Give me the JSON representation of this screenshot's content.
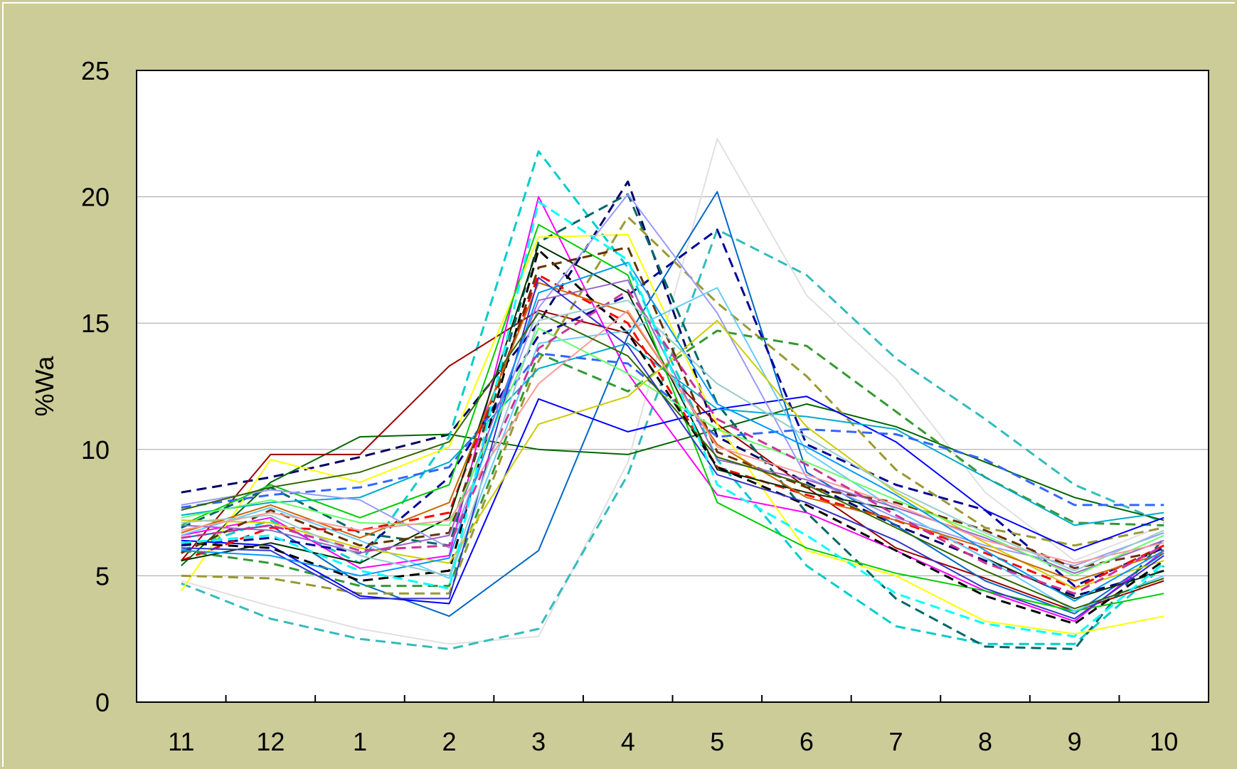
{
  "chart_data": {
    "type": "line",
    "title": "",
    "xlabel": "",
    "ylabel": "%Wa",
    "categories": [
      "11",
      "12",
      "1",
      "2",
      "3",
      "4",
      "5",
      "6",
      "7",
      "8",
      "9",
      "10"
    ],
    "ylim": [
      0,
      25
    ],
    "yticks": [
      0,
      5,
      10,
      15,
      20,
      25
    ],
    "grid": "horizontal",
    "legend": "none",
    "plot_background": "#ffffff",
    "page_background": "#cccc99",
    "series": [
      {
        "color": "#e0e0e0",
        "dash": false,
        "values": [
          4.8,
          3.8,
          2.9,
          2.3,
          2.6,
          9.5,
          22.3,
          16.1,
          12.8,
          8.3,
          5.6,
          7.0
        ]
      },
      {
        "color": "#33bbbb",
        "dash": true,
        "values": [
          4.7,
          3.3,
          2.5,
          2.1,
          2.9,
          9.0,
          18.7,
          16.9,
          13.6,
          11.2,
          8.6,
          7.1
        ]
      },
      {
        "color": "#000066",
        "dash": true,
        "values": [
          8.3,
          8.9,
          9.7,
          10.6,
          15.0,
          20.6,
          10.5,
          8.7,
          7.0,
          5.6,
          4.2,
          5.2
        ]
      },
      {
        "color": "#006600",
        "dash": false,
        "values": [
          5.4,
          8.7,
          10.5,
          10.6,
          10.0,
          9.8,
          10.8,
          11.8,
          10.9,
          9.5,
          8.1,
          7.2
        ]
      },
      {
        "color": "#00cccc",
        "dash": true,
        "values": [
          6.0,
          7.2,
          5.5,
          10.5,
          21.8,
          17.2,
          9.6,
          5.4,
          3.0,
          2.3,
          2.3,
          5.4
        ]
      },
      {
        "color": "#990000",
        "dash": false,
        "values": [
          5.6,
          9.8,
          9.8,
          13.3,
          15.5,
          14.6,
          11.0,
          8.5,
          6.1,
          4.9,
          3.6,
          4.8
        ]
      },
      {
        "color": "#ff00ff",
        "dash": false,
        "values": [
          6.6,
          7.3,
          5.3,
          5.8,
          20.0,
          13.0,
          8.2,
          7.5,
          6.0,
          4.4,
          3.2,
          6.0
        ]
      },
      {
        "color": "#0066cc",
        "dash": false,
        "values": [
          6.5,
          7.0,
          4.7,
          3.4,
          6.0,
          14.5,
          20.2,
          9.1,
          7.0,
          4.8,
          3.5,
          5.9
        ]
      },
      {
        "color": "#000099",
        "dash": true,
        "values": [
          6.2,
          6.5,
          5.9,
          8.9,
          14.5,
          16.1,
          18.7,
          10.2,
          8.6,
          7.6,
          4.6,
          6.1
        ]
      },
      {
        "color": "#006666",
        "dash": true,
        "values": [
          6.9,
          8.5,
          6.7,
          6.2,
          18.2,
          20.1,
          11.8,
          7.5,
          4.1,
          2.2,
          2.1,
          6.5
        ]
      },
      {
        "color": "#ffff00",
        "dash": false,
        "values": [
          4.4,
          9.6,
          8.7,
          10.1,
          18.4,
          18.5,
          11.0,
          6.0,
          5.0,
          3.2,
          2.7,
          3.4
        ]
      },
      {
        "color": "#999933",
        "dash": true,
        "values": [
          5.0,
          4.9,
          4.3,
          4.3,
          13.5,
          19.2,
          15.8,
          12.9,
          9.2,
          6.9,
          6.2,
          6.9
        ]
      },
      {
        "color": "#339933",
        "dash": true,
        "values": [
          6.0,
          5.5,
          4.6,
          4.6,
          13.8,
          12.3,
          14.7,
          14.1,
          11.5,
          8.9,
          7.1,
          7.0
        ]
      },
      {
        "color": "#0000ff",
        "dash": false,
        "values": [
          6.4,
          6.2,
          4.2,
          3.9,
          12.0,
          10.7,
          11.6,
          12.1,
          10.3,
          7.6,
          6.0,
          7.3
        ]
      },
      {
        "color": "#00aacc",
        "dash": false,
        "values": [
          7.4,
          7.9,
          8.1,
          9.5,
          13.2,
          14.2,
          11.6,
          11.3,
          10.8,
          8.9,
          7.0,
          7.5
        ]
      },
      {
        "color": "#3366ff",
        "dash": true,
        "values": [
          7.7,
          8.2,
          8.5,
          9.3,
          13.8,
          13.4,
          10.5,
          10.8,
          10.6,
          9.6,
          7.8,
          7.8
        ]
      },
      {
        "color": "#ff0000",
        "dash": true,
        "values": [
          5.6,
          6.9,
          6.8,
          7.5,
          16.9,
          15.0,
          9.3,
          8.2,
          7.2,
          5.9,
          4.5,
          6.2
        ]
      },
      {
        "color": "#003300",
        "dash": false,
        "values": [
          5.6,
          6.3,
          5.5,
          7.3,
          18.1,
          16.2,
          9.2,
          8.3,
          7.6,
          5.7,
          4.1,
          5.2
        ]
      },
      {
        "color": "#00cc00",
        "dash": false,
        "values": [
          7.0,
          8.6,
          7.3,
          8.6,
          18.9,
          16.9,
          7.9,
          6.1,
          5.1,
          4.4,
          3.6,
          4.3
        ]
      },
      {
        "color": "#000000",
        "dash": true,
        "values": [
          6.3,
          6.1,
          4.8,
          5.2,
          17.9,
          14.6,
          9.3,
          7.8,
          6.0,
          4.2,
          3.1,
          5.6
        ]
      },
      {
        "color": "#9999ff",
        "dash": false,
        "values": [
          7.8,
          8.4,
          8.0,
          6.1,
          15.6,
          20.1,
          15.4,
          8.9,
          7.3,
          6.2,
          5.4,
          6.7
        ]
      },
      {
        "color": "#66ccff",
        "dash": false,
        "values": [
          6.6,
          7.7,
          6.4,
          4.9,
          14.2,
          14.7,
          16.4,
          9.9,
          7.6,
          5.7,
          3.6,
          5.0
        ]
      },
      {
        "color": "#cccc00",
        "dash": false,
        "values": [
          7.2,
          7.1,
          6.1,
          5.5,
          11.0,
          12.1,
          15.1,
          10.9,
          8.3,
          6.3,
          4.5,
          5.6
        ]
      },
      {
        "color": "#663300",
        "dash": true,
        "values": [
          5.9,
          7.6,
          6.2,
          6.7,
          17.2,
          18.0,
          9.9,
          8.5,
          7.9,
          6.8,
          5.3,
          6.0
        ]
      },
      {
        "color": "#cc6600",
        "dash": false,
        "values": [
          6.7,
          7.8,
          6.5,
          7.9,
          16.6,
          15.4,
          10.2,
          8.1,
          7.2,
          6.1,
          4.8,
          5.9
        ]
      },
      {
        "color": "#9966cc",
        "dash": false,
        "values": [
          7.0,
          6.8,
          5.9,
          6.6,
          15.9,
          16.7,
          9.6,
          8.8,
          7.7,
          6.5,
          5.1,
          6.4
        ]
      },
      {
        "color": "#3333cc",
        "dash": false,
        "values": [
          6.1,
          6.0,
          4.1,
          4.1,
          16.8,
          14.1,
          9.0,
          7.9,
          6.4,
          4.5,
          3.3,
          5.8
        ]
      },
      {
        "color": "#66ff66",
        "dash": false,
        "values": [
          7.3,
          8.0,
          7.1,
          7.0,
          14.8,
          13.0,
          10.8,
          9.5,
          8.0,
          6.6,
          5.0,
          6.6
        ]
      },
      {
        "color": "#ff9999",
        "dash": false,
        "values": [
          6.8,
          7.5,
          6.8,
          7.2,
          12.6,
          15.5,
          10.1,
          9.0,
          7.8,
          6.4,
          5.5,
          6.3
        ]
      },
      {
        "color": "#0099ff",
        "dash": false,
        "values": [
          6.0,
          5.8,
          5.0,
          5.7,
          16.2,
          17.4,
          11.8,
          10.1,
          8.2,
          6.0,
          4.0,
          6.0
        ]
      },
      {
        "color": "#336600",
        "dash": false,
        "values": [
          7.6,
          8.5,
          9.1,
          10.3,
          15.4,
          13.7,
          9.7,
          8.6,
          6.9,
          5.2,
          3.7,
          4.9
        ]
      },
      {
        "color": "#cc3399",
        "dash": true,
        "values": [
          6.5,
          7.0,
          6.0,
          6.2,
          14.0,
          16.3,
          11.2,
          9.4,
          7.4,
          5.5,
          4.3,
          6.2
        ]
      },
      {
        "color": "#99cccc",
        "dash": false,
        "values": [
          7.1,
          7.4,
          5.8,
          5.0,
          15.1,
          15.9,
          12.6,
          10.5,
          8.4,
          6.7,
          5.2,
          6.8
        ]
      },
      {
        "color": "#00ffff",
        "dash": true,
        "values": [
          6.3,
          6.6,
          5.2,
          4.5,
          19.8,
          17.5,
          8.6,
          6.6,
          4.3,
          3.1,
          2.6,
          5.5
        ]
      }
    ]
  }
}
